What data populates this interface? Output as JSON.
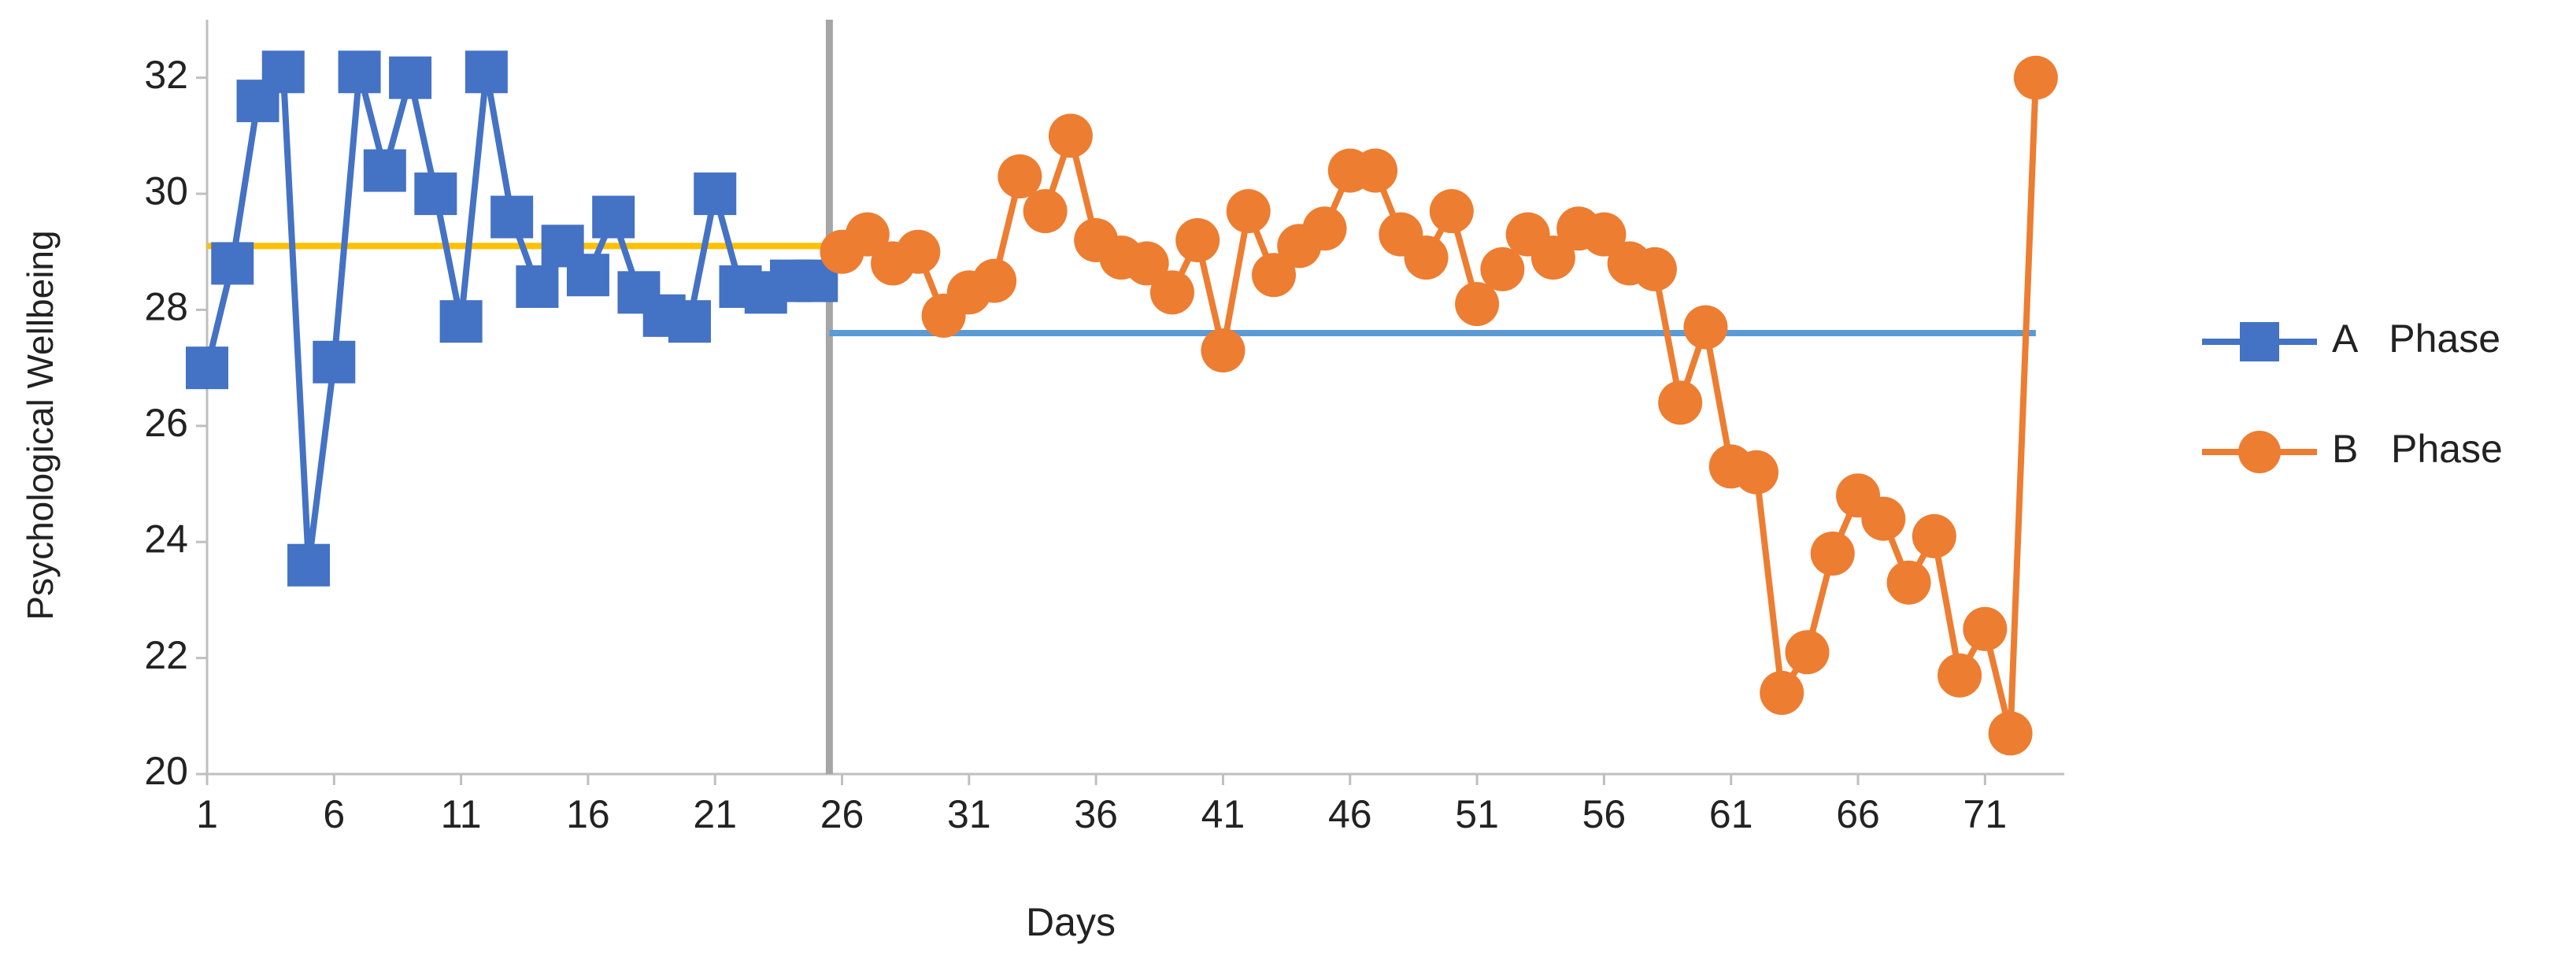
{
  "chart_data": {
    "type": "line",
    "x_label": "Days",
    "y_label": "Psychological Wellbeing",
    "xlim": [
      1,
      73.5
    ],
    "xticks": [
      1,
      6,
      11,
      16,
      21,
      26,
      31,
      36,
      41,
      46,
      51,
      56,
      61,
      66,
      71
    ],
    "ylim": [
      20,
      33
    ],
    "yticks": [
      20,
      22,
      24,
      26,
      28,
      30,
      32
    ],
    "grid": false,
    "legend": "right",
    "phase_change_x": 25.5,
    "phase_change_color": "#A6A6A6",
    "mean_lines": [
      {
        "value": 29.1,
        "x": [
          1,
          25.5
        ],
        "color": "#FFC000"
      },
      {
        "value": 27.6,
        "x": [
          25.5,
          73
        ],
        "color": "#5B9BD5"
      }
    ],
    "series": [
      {
        "name": "A   Phase",
        "color": "#4472C4",
        "marker": "square",
        "x": [
          1,
          2,
          3,
          4,
          5,
          6,
          7,
          8,
          9,
          10,
          11,
          12,
          13,
          14,
          15,
          16,
          17,
          18,
          19,
          20,
          21,
          22,
          23,
          24,
          25
        ],
        "values": [
          27.0,
          28.8,
          31.6,
          32.1,
          23.6,
          27.1,
          32.1,
          30.4,
          32.0,
          30.0,
          27.8,
          32.1,
          29.6,
          28.4,
          29.1,
          28.6,
          29.6,
          28.3,
          27.9,
          27.8,
          30.0,
          28.4,
          28.3,
          28.5,
          28.5
        ]
      },
      {
        "name": "B   Phase",
        "color": "#ED7D31",
        "marker": "circle",
        "x": [
          26,
          27,
          28,
          29,
          30,
          31,
          32,
          33,
          34,
          35,
          36,
          37,
          38,
          39,
          40,
          41,
          42,
          43,
          44,
          45,
          46,
          47,
          48,
          49,
          50,
          51,
          52,
          53,
          54,
          55,
          56,
          57,
          58,
          59,
          60,
          61,
          62,
          63,
          64,
          65,
          66,
          67,
          68,
          69,
          70,
          71,
          72,
          73
        ],
        "values": [
          29.0,
          29.3,
          28.8,
          29.0,
          27.9,
          28.3,
          28.5,
          30.3,
          29.7,
          31.0,
          29.2,
          28.9,
          28.8,
          28.3,
          29.2,
          27.3,
          29.7,
          28.6,
          29.1,
          29.4,
          30.4,
          30.4,
          29.3,
          28.9,
          29.7,
          28.1,
          28.7,
          29.3,
          28.9,
          29.4,
          29.3,
          28.8,
          28.7,
          26.4,
          27.7,
          25.3,
          25.2,
          21.4,
          22.1,
          23.8,
          24.8,
          24.4,
          23.3,
          24.1,
          21.7,
          22.5,
          20.7,
          32.0
        ]
      }
    ]
  }
}
